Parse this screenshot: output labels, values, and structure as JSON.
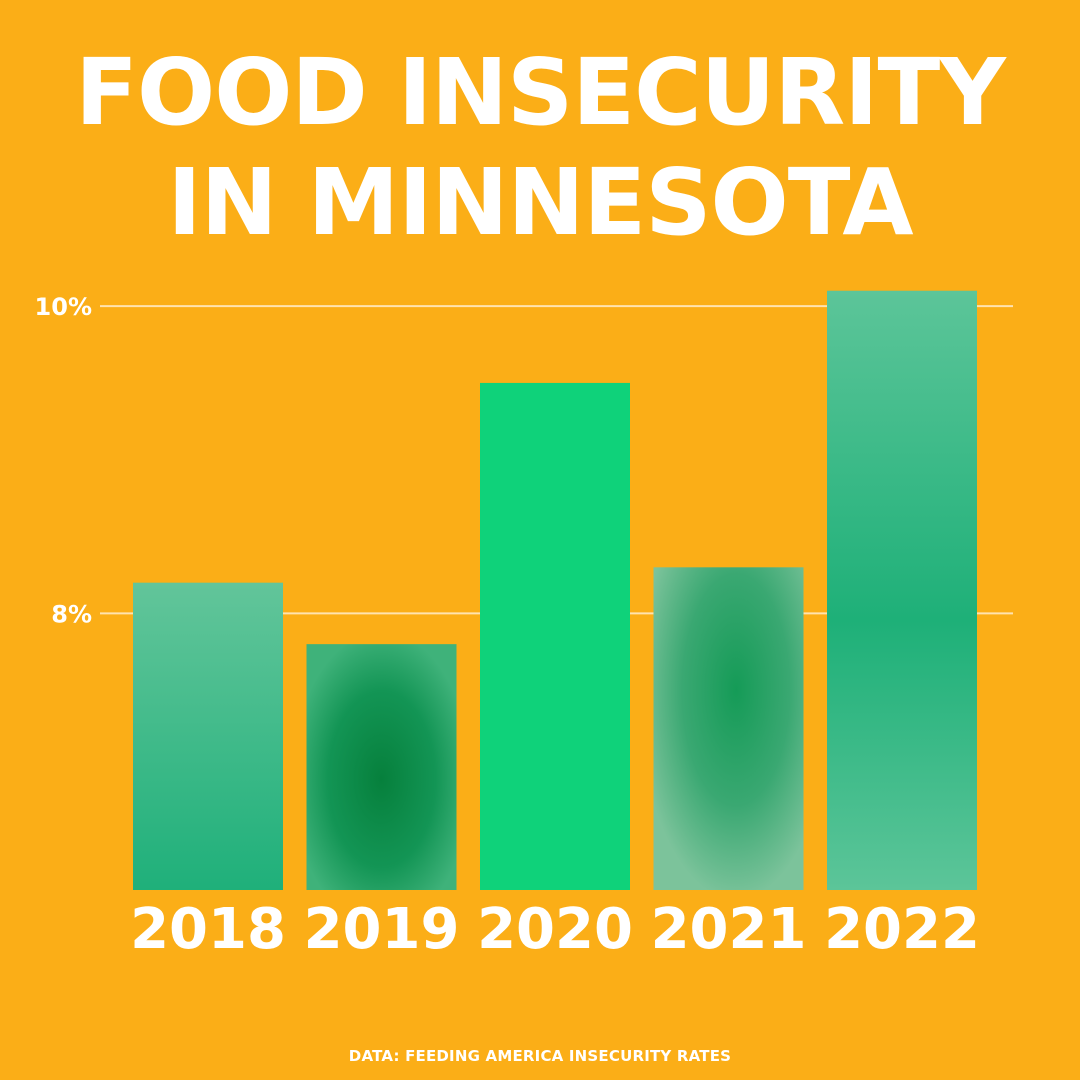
{
  "title_line1": "FOOD INSECURITY",
  "title_line2": "IN MINNESOTA",
  "source": "DATA: FEEDING AMERICA INSECURITY RATES",
  "colors": {
    "background": "#FBAE17",
    "text": "#FFFFFF",
    "bars": [
      "#5CC392",
      "#0E8A45",
      "#0FD27A",
      "#1EA764",
      "#2DB97C"
    ]
  },
  "chart_data": {
    "type": "bar",
    "title": "FOOD INSECURITY IN MINNESOTA",
    "categories": [
      "2018",
      "2019",
      "2020",
      "2021",
      "2022"
    ],
    "values": [
      8.2,
      7.8,
      9.5,
      8.3,
      10.1
    ],
    "yticks": [
      {
        "value": 8,
        "label": "8%"
      },
      {
        "value": 10,
        "label": "10%"
      }
    ],
    "ylim": [
      6.2,
      10.3
    ],
    "grid": true,
    "xlabel": "",
    "ylabel": ""
  }
}
